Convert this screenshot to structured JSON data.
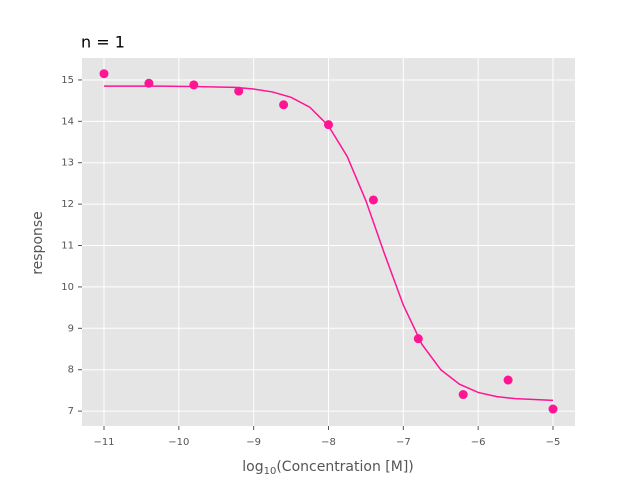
{
  "chart_data": {
    "type": "scatter",
    "title": "n = 1",
    "xlabel": {
      "text": "log",
      "sub": "10",
      "rest": "(Concentration [M])"
    },
    "ylabel": "response",
    "xlim": [
      -11.294,
      -4.706
    ],
    "ylim": [
      6.64,
      15.53
    ],
    "xticks": [
      {
        "value": -11,
        "label": "−11"
      },
      {
        "value": -10,
        "label": "−10"
      },
      {
        "value": -9,
        "label": "−9"
      },
      {
        "value": -8,
        "label": "−8"
      },
      {
        "value": -7,
        "label": "−7"
      },
      {
        "value": -6,
        "label": "−6"
      },
      {
        "value": -5,
        "label": "−5"
      }
    ],
    "yticks": [
      7,
      8,
      9,
      10,
      11,
      12,
      13,
      14,
      15
    ],
    "grid": true,
    "points": {
      "color": "#ff1493",
      "x": [
        -11,
        -10.4,
        -9.8,
        -9.2,
        -8.6,
        -8.0,
        -7.4,
        -6.8,
        -6.2,
        -5.6,
        -5.0
      ],
      "y": [
        15.15,
        14.92,
        14.88,
        14.73,
        14.4,
        13.92,
        12.1,
        8.75,
        7.4,
        7.75,
        7.05
      ]
    },
    "fit": {
      "color": "#ff1493",
      "x": [
        -11,
        -10.75,
        -10.5,
        -10.25,
        -10,
        -9.75,
        -9.5,
        -9.25,
        -9,
        -8.75,
        -8.5,
        -8.25,
        -8,
        -7.75,
        -7.5,
        -7.25,
        -7,
        -6.75,
        -6.5,
        -6.25,
        -6,
        -5.75,
        -5.5,
        -5.25,
        -5
      ],
      "y": [
        14.85,
        14.85,
        14.85,
        14.85,
        14.846,
        14.84,
        14.83,
        14.82,
        14.78,
        14.71,
        14.58,
        14.34,
        13.89,
        13.15,
        12.08,
        10.79,
        9.56,
        8.61,
        8.0,
        7.65,
        7.45,
        7.35,
        7.3,
        7.28,
        7.26
      ]
    }
  }
}
